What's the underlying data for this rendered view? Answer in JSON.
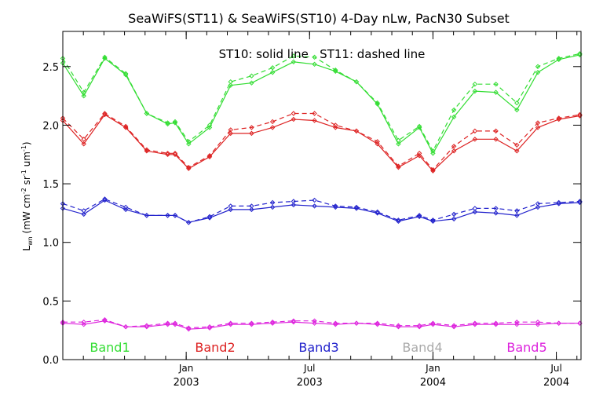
{
  "chart_data": {
    "type": "line",
    "title": "SeaWiFS(ST11) & SeaWiFS(ST10) 4-Day nLw, PacN30 Subset",
    "annotation": "ST10: solid line   ST11: dashed line",
    "ylabel": "L",
    "ylabel_sub": "wn",
    "ylabel_units": "(mW cm",
    "ylabel_units_sup1": "-2",
    "ylabel_units_mid": " sr",
    "ylabel_units_sup2": "-1",
    "ylabel_units_end": " um",
    "ylabel_units_sup3": "-1",
    "ylabel_units_close": ")",
    "ylim": [
      0.0,
      2.8
    ],
    "xlim": [
      2002.5,
      2004.6
    ],
    "yticks": [
      {
        "value": 0.0,
        "label": "0.0"
      },
      {
        "value": 0.5,
        "label": "0.5"
      },
      {
        "value": 1.0,
        "label": "1.0"
      },
      {
        "value": 1.5,
        "label": "1.5"
      },
      {
        "value": 2.0,
        "label": "2.0"
      },
      {
        "value": 2.5,
        "label": "2.5"
      }
    ],
    "xticks": [
      {
        "value": 2003.0,
        "month": "Jan",
        "year": "2003"
      },
      {
        "value": 2003.5,
        "month": "Jul",
        "year": "2003"
      },
      {
        "value": 2004.0,
        "month": "Jan",
        "year": "2004"
      },
      {
        "value": 2004.5,
        "month": "Jul",
        "year": "2004"
      }
    ],
    "x": [
      2002.5,
      2002.585,
      2002.67,
      2002.755,
      2002.84,
      2002.925,
      2002.955,
      2003.01,
      2003.095,
      2003.18,
      2003.265,
      2003.35,
      2003.435,
      2003.52,
      2003.605,
      2003.69,
      2003.775,
      2003.86,
      2003.945,
      2004.0,
      2004.085,
      2004.17,
      2004.255,
      2004.34,
      2004.425,
      2004.51,
      2004.595
    ],
    "series": [
      {
        "name": "Band1",
        "color": "#33dd33",
        "st10": [
          2.53,
          2.25,
          2.57,
          2.43,
          2.1,
          2.01,
          2.02,
          1.84,
          1.98,
          2.34,
          2.36,
          2.45,
          2.54,
          2.52,
          2.46,
          2.37,
          2.18,
          1.84,
          1.98,
          1.76,
          2.07,
          2.29,
          2.28,
          2.13,
          2.45,
          2.56,
          2.6
        ],
        "st11": [
          2.57,
          2.28,
          2.58,
          2.44,
          2.1,
          2.02,
          2.03,
          1.86,
          2.0,
          2.37,
          2.42,
          2.49,
          2.59,
          2.58,
          2.47,
          2.37,
          2.19,
          1.87,
          1.99,
          1.78,
          2.13,
          2.35,
          2.35,
          2.19,
          2.5,
          2.57,
          2.61
        ]
      },
      {
        "name": "Band2",
        "color": "#dd2222",
        "st10": [
          2.04,
          1.84,
          2.09,
          1.98,
          1.78,
          1.75,
          1.75,
          1.63,
          1.73,
          1.93,
          1.93,
          1.98,
          2.05,
          2.04,
          1.98,
          1.95,
          1.84,
          1.64,
          1.74,
          1.61,
          1.78,
          1.88,
          1.88,
          1.78,
          1.98,
          2.05,
          2.08
        ],
        "st11": [
          2.06,
          1.88,
          2.1,
          1.99,
          1.79,
          1.76,
          1.76,
          1.64,
          1.74,
          1.96,
          1.98,
          2.03,
          2.1,
          2.1,
          2.0,
          1.95,
          1.86,
          1.65,
          1.76,
          1.62,
          1.82,
          1.95,
          1.95,
          1.83,
          2.02,
          2.06,
          2.09
        ]
      },
      {
        "name": "Band3",
        "color": "#2222cc",
        "st10": [
          1.29,
          1.24,
          1.36,
          1.28,
          1.23,
          1.23,
          1.23,
          1.17,
          1.21,
          1.28,
          1.28,
          1.3,
          1.32,
          1.31,
          1.3,
          1.29,
          1.25,
          1.18,
          1.22,
          1.18,
          1.2,
          1.26,
          1.25,
          1.23,
          1.3,
          1.33,
          1.34
        ],
        "st11": [
          1.33,
          1.27,
          1.37,
          1.3,
          1.23,
          1.23,
          1.23,
          1.17,
          1.22,
          1.31,
          1.31,
          1.34,
          1.35,
          1.36,
          1.31,
          1.3,
          1.26,
          1.19,
          1.23,
          1.19,
          1.24,
          1.29,
          1.29,
          1.27,
          1.33,
          1.34,
          1.35
        ]
      },
      {
        "name": "Band4",
        "color": "#aaaaaa",
        "st10": [],
        "st11": []
      },
      {
        "name": "Band5",
        "color": "#dd22dd",
        "st10": [
          0.31,
          0.3,
          0.33,
          0.28,
          0.28,
          0.3,
          0.3,
          0.26,
          0.27,
          0.3,
          0.3,
          0.31,
          0.32,
          0.31,
          0.3,
          0.31,
          0.3,
          0.28,
          0.28,
          0.3,
          0.28,
          0.3,
          0.3,
          0.3,
          0.3,
          0.31,
          0.31
        ],
        "st11": [
          0.32,
          0.32,
          0.34,
          0.28,
          0.29,
          0.31,
          0.31,
          0.27,
          0.28,
          0.31,
          0.31,
          0.32,
          0.33,
          0.33,
          0.31,
          0.31,
          0.31,
          0.29,
          0.29,
          0.31,
          0.29,
          0.31,
          0.31,
          0.32,
          0.32,
          0.31,
          0.31
        ]
      }
    ]
  }
}
